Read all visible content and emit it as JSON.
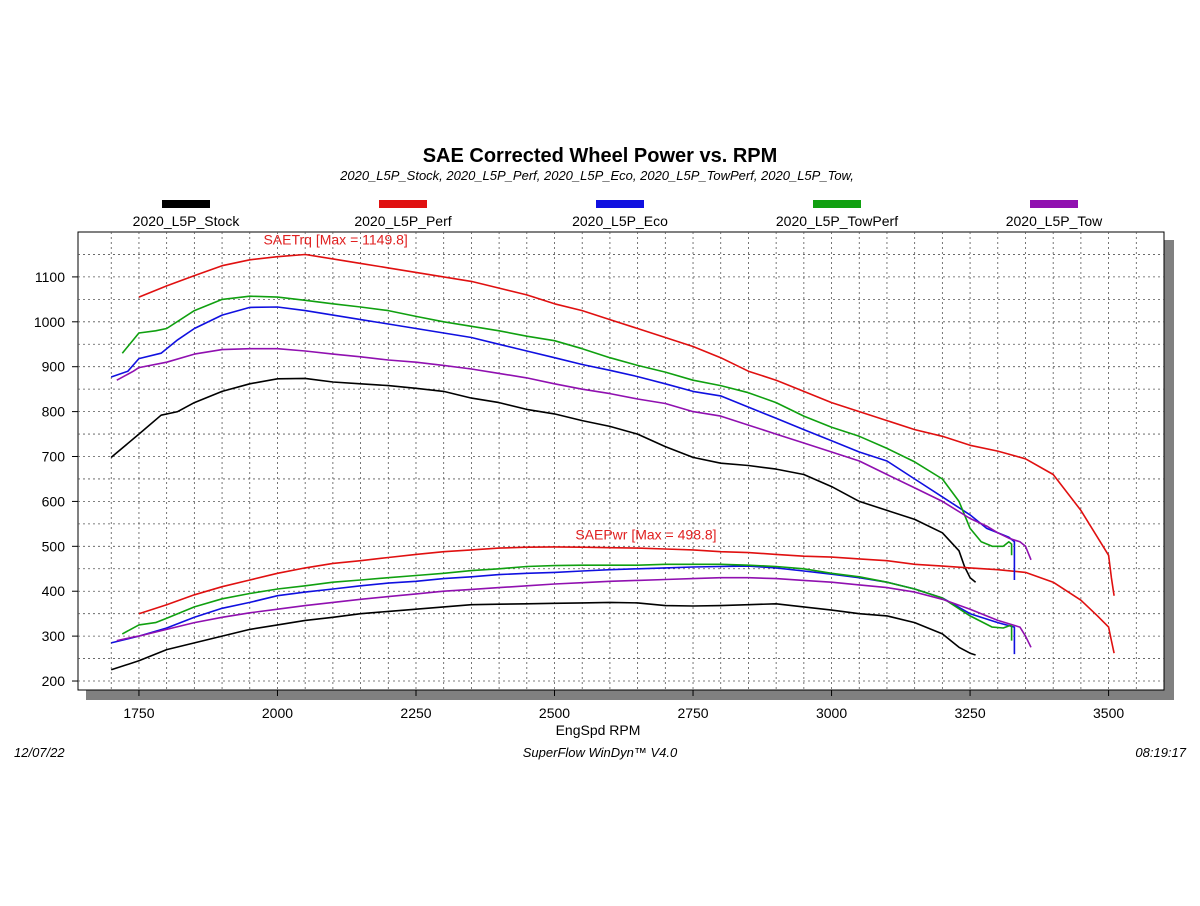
{
  "chart_data": {
    "type": "line",
    "title": "SAE Corrected Wheel Power vs. RPM",
    "subtitle": "2020_L5P_Stock, 2020_L5P_Perf, 2020_L5P_Eco, 2020_L5P_TowPerf, 2020_L5P_Tow,",
    "xlabel": "EngSpd RPM",
    "ylabel": "",
    "xlim": [
      1640,
      3600
    ],
    "ylim": [
      180,
      1200
    ],
    "xticks": [
      1750,
      2000,
      2250,
      2500,
      2750,
      3000,
      3250,
      3500
    ],
    "yticks": [
      200,
      300,
      400,
      500,
      600,
      700,
      800,
      900,
      1000,
      1100
    ],
    "grid": true,
    "legend_position": "top",
    "annotations": [
      {
        "text": "SAETrq [Max = 1149.8]",
        "x": 2105,
        "y": 1172
      },
      {
        "text": "SAEPwr [Max = 498.8]",
        "x": 2665,
        "y": 515
      }
    ],
    "footer": {
      "left": "12/07/22",
      "center": "SuperFlow WinDyn™ V4.0",
      "right": "08:19:17"
    },
    "series": [
      {
        "name": "2020_L5P_Stock",
        "color": "#000000",
        "torque": {
          "x": [
            1700,
            1750,
            1790,
            1820,
            1850,
            1900,
            1950,
            2000,
            2050,
            2100,
            2150,
            2200,
            2250,
            2300,
            2350,
            2400,
            2450,
            2500,
            2550,
            2600,
            2650,
            2700,
            2750,
            2800,
            2850,
            2900,
            2950,
            3000,
            3050,
            3100,
            3150,
            3200,
            3230,
            3240,
            3250,
            3260
          ],
          "y": [
            698,
            750,
            792,
            800,
            820,
            845,
            862,
            873,
            874,
            866,
            862,
            858,
            852,
            845,
            830,
            820,
            805,
            795,
            780,
            767,
            750,
            722,
            698,
            685,
            680,
            672,
            660,
            633,
            600,
            580,
            560,
            530,
            490,
            455,
            430,
            420
          ]
        },
        "power": {
          "x": [
            1700,
            1750,
            1800,
            1850,
            1900,
            1950,
            2000,
            2050,
            2100,
            2150,
            2200,
            2250,
            2300,
            2350,
            2400,
            2450,
            2500,
            2550,
            2600,
            2650,
            2700,
            2750,
            2800,
            2850,
            2900,
            2950,
            3000,
            3050,
            3100,
            3150,
            3200,
            3230,
            3250,
            3260
          ],
          "y": [
            225,
            245,
            270,
            285,
            300,
            315,
            325,
            335,
            342,
            350,
            355,
            360,
            365,
            370,
            371,
            372,
            373,
            374,
            375,
            374,
            368,
            367,
            368,
            370,
            372,
            365,
            358,
            350,
            345,
            330,
            305,
            275,
            262,
            258
          ]
        }
      },
      {
        "name": "2020_L5P_Perf",
        "color": "#e01010",
        "torque": {
          "x": [
            1750,
            1800,
            1850,
            1900,
            1950,
            2000,
            2050,
            2100,
            2150,
            2200,
            2250,
            2300,
            2350,
            2400,
            2450,
            2500,
            2550,
            2600,
            2650,
            2700,
            2750,
            2800,
            2850,
            2900,
            2950,
            3000,
            3050,
            3100,
            3150,
            3200,
            3250,
            3300,
            3350,
            3400,
            3450,
            3480,
            3500,
            3505,
            3510
          ],
          "y": [
            1055,
            1080,
            1103,
            1125,
            1138,
            1145,
            1149.8,
            1140,
            1130,
            1120,
            1110,
            1100,
            1090,
            1075,
            1060,
            1040,
            1025,
            1005,
            985,
            965,
            945,
            920,
            890,
            870,
            845,
            820,
            800,
            780,
            760,
            745,
            725,
            712,
            695,
            660,
            580,
            520,
            480,
            430,
            390
          ]
        },
        "power": {
          "x": [
            1750,
            1800,
            1850,
            1900,
            1950,
            2000,
            2050,
            2100,
            2150,
            2200,
            2250,
            2300,
            2350,
            2400,
            2450,
            2500,
            2550,
            2600,
            2650,
            2700,
            2750,
            2800,
            2850,
            2900,
            2950,
            3000,
            3050,
            3100,
            3150,
            3200,
            3250,
            3300,
            3350,
            3400,
            3450,
            3480,
            3500,
            3505,
            3510
          ],
          "y": [
            350,
            370,
            392,
            410,
            425,
            440,
            452,
            462,
            468,
            475,
            482,
            488,
            492,
            496,
            498,
            498.8,
            498,
            497,
            496,
            494,
            492,
            488,
            486,
            482,
            478,
            476,
            472,
            468,
            460,
            456,
            452,
            448,
            442,
            420,
            380,
            345,
            320,
            290,
            262
          ]
        }
      },
      {
        "name": "2020_L5P_Eco",
        "color": "#1010e0",
        "torque": {
          "x": [
            1700,
            1730,
            1750,
            1790,
            1820,
            1850,
            1900,
            1950,
            2000,
            2050,
            2100,
            2150,
            2200,
            2250,
            2300,
            2350,
            2400,
            2450,
            2500,
            2550,
            2600,
            2650,
            2700,
            2750,
            2800,
            2850,
            2900,
            2950,
            3000,
            3050,
            3100,
            3150,
            3200,
            3250,
            3280,
            3300,
            3320,
            3330,
            3330
          ],
          "y": [
            877,
            890,
            918,
            930,
            960,
            985,
            1015,
            1032,
            1033,
            1025,
            1015,
            1005,
            995,
            985,
            975,
            965,
            950,
            935,
            920,
            905,
            892,
            878,
            862,
            845,
            835,
            810,
            785,
            760,
            735,
            710,
            690,
            650,
            610,
            570,
            540,
            530,
            520,
            510,
            425
          ]
        },
        "power": {
          "x": [
            1700,
            1750,
            1800,
            1850,
            1900,
            1950,
            2000,
            2050,
            2100,
            2150,
            2200,
            2250,
            2300,
            2350,
            2400,
            2450,
            2500,
            2550,
            2600,
            2650,
            2700,
            2750,
            2800,
            2850,
            2900,
            2950,
            3000,
            3050,
            3100,
            3150,
            3200,
            3250,
            3300,
            3330,
            3330
          ],
          "y": [
            285,
            300,
            318,
            342,
            362,
            375,
            390,
            398,
            405,
            412,
            418,
            422,
            428,
            432,
            437,
            440,
            442,
            445,
            448,
            450,
            452,
            454,
            455,
            456,
            452,
            445,
            438,
            430,
            420,
            405,
            385,
            350,
            330,
            320,
            260
          ]
        }
      },
      {
        "name": "2020_L5P_TowPerf",
        "color": "#10a010",
        "torque": {
          "x": [
            1720,
            1750,
            1780,
            1800,
            1850,
            1900,
            1950,
            2000,
            2050,
            2100,
            2150,
            2200,
            2250,
            2300,
            2350,
            2400,
            2450,
            2500,
            2550,
            2600,
            2650,
            2700,
            2750,
            2800,
            2850,
            2900,
            2950,
            3000,
            3050,
            3100,
            3150,
            3200,
            3230,
            3250,
            3270,
            3290,
            3310,
            3320,
            3325,
            3325
          ],
          "y": [
            930,
            975,
            980,
            985,
            1025,
            1050,
            1057,
            1055,
            1048,
            1040,
            1033,
            1025,
            1012,
            1000,
            990,
            980,
            968,
            958,
            940,
            920,
            903,
            888,
            870,
            858,
            842,
            820,
            790,
            765,
            745,
            718,
            688,
            650,
            600,
            540,
            510,
            500,
            500,
            510,
            505,
            480
          ]
        },
        "power": {
          "x": [
            1720,
            1750,
            1780,
            1800,
            1850,
            1900,
            1950,
            2000,
            2050,
            2100,
            2150,
            2200,
            2250,
            2300,
            2350,
            2400,
            2450,
            2500,
            2550,
            2600,
            2650,
            2700,
            2750,
            2800,
            2850,
            2900,
            2950,
            3000,
            3050,
            3100,
            3150,
            3200,
            3250,
            3290,
            3310,
            3325,
            3325
          ],
          "y": [
            305,
            325,
            330,
            340,
            365,
            383,
            395,
            405,
            412,
            420,
            425,
            430,
            435,
            440,
            446,
            450,
            455,
            457,
            458,
            458,
            458,
            460,
            460,
            460,
            458,
            455,
            450,
            440,
            432,
            420,
            405,
            385,
            345,
            320,
            318,
            325,
            290
          ]
        }
      },
      {
        "name": "2020_L5P_Tow",
        "color": "#9010b0",
        "torque": {
          "x": [
            1710,
            1740,
            1750,
            1800,
            1850,
            1900,
            1950,
            2000,
            2050,
            2100,
            2150,
            2200,
            2250,
            2300,
            2350,
            2400,
            2450,
            2500,
            2550,
            2600,
            2650,
            2700,
            2750,
            2800,
            2850,
            2900,
            2950,
            3000,
            3050,
            3100,
            3150,
            3200,
            3250,
            3280,
            3300,
            3320,
            3340,
            3350,
            3360
          ],
          "y": [
            870,
            890,
            898,
            910,
            928,
            938,
            940,
            940,
            935,
            928,
            922,
            915,
            910,
            903,
            895,
            885,
            875,
            862,
            850,
            840,
            828,
            818,
            800,
            790,
            770,
            750,
            730,
            710,
            690,
            660,
            630,
            600,
            562,
            545,
            530,
            518,
            510,
            500,
            470
          ]
        },
        "power": {
          "x": [
            1710,
            1740,
            1750,
            1800,
            1850,
            1900,
            1950,
            2000,
            2050,
            2100,
            2150,
            2200,
            2250,
            2300,
            2350,
            2400,
            2450,
            2500,
            2550,
            2600,
            2650,
            2700,
            2750,
            2800,
            2850,
            2900,
            2950,
            3000,
            3050,
            3100,
            3150,
            3200,
            3250,
            3300,
            3340,
            3350,
            3360
          ],
          "y": [
            290,
            298,
            300,
            315,
            330,
            342,
            352,
            360,
            368,
            375,
            382,
            388,
            394,
            400,
            404,
            408,
            412,
            416,
            419,
            422,
            424,
            426,
            428,
            430,
            430,
            428,
            424,
            420,
            414,
            408,
            398,
            382,
            360,
            335,
            320,
            300,
            275
          ]
        }
      }
    ]
  }
}
